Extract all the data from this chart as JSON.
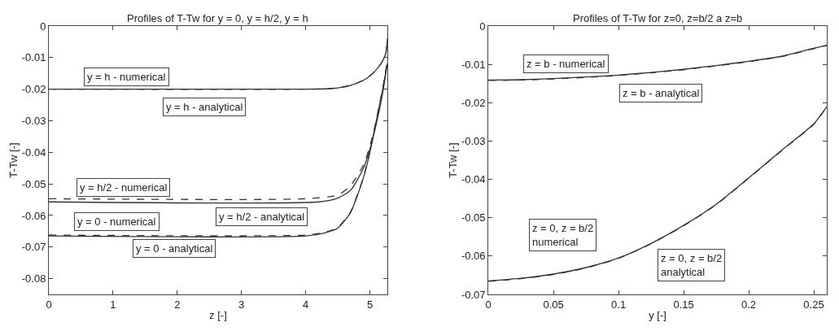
{
  "chart_data": [
    {
      "type": "line",
      "title": "Profiles of T-Tw for y = 0, y = h/2, y = h",
      "xlabel": "z [-]",
      "ylabel": "T-Tw [-]",
      "xlim": [
        0,
        5.27
      ],
      "ylim": [
        -0.085,
        0
      ],
      "xticks": [
        0,
        1,
        2,
        3,
        4,
        5
      ],
      "yticks": [
        0,
        -0.01,
        -0.02,
        -0.03,
        -0.04,
        -0.05,
        -0.06,
        -0.07,
        -0.08
      ],
      "marker": "none",
      "series": [
        {
          "color": "#333333",
          "line_style": "solid",
          "x": [
            0,
            4,
            4.3,
            4.5,
            4.7,
            4.9,
            5.0,
            5.1,
            5.2,
            5.25,
            5.27
          ],
          "values": [
            -0.02,
            -0.02,
            -0.0199,
            -0.0196,
            -0.0188,
            -0.0172,
            -0.0158,
            -0.0138,
            -0.011,
            -0.0085,
            -0.004
          ]
        },
        {
          "color": "#333333",
          "line_style": "dashed",
          "x": [
            0,
            4,
            4.3,
            4.5,
            4.7,
            4.9,
            5.0,
            5.1,
            5.2,
            5.25,
            5.27
          ],
          "values": [
            -0.02,
            -0.02,
            -0.0199,
            -0.0196,
            -0.0188,
            -0.0172,
            -0.0158,
            -0.0138,
            -0.011,
            -0.0085,
            -0.004
          ]
        },
        {
          "color": "#333333",
          "line_style": "solid",
          "x": [
            0,
            4.2,
            4.5,
            4.7,
            4.9,
            5.0,
            5.1,
            5.2,
            5.27
          ],
          "values": [
            -0.0557,
            -0.0557,
            -0.0545,
            -0.052,
            -0.045,
            -0.039,
            -0.031,
            -0.021,
            -0.012
          ]
        },
        {
          "color": "#333333",
          "line_style": "dashed",
          "x": [
            0,
            4.0,
            4.5,
            4.7,
            4.9,
            5.0,
            5.1,
            5.2,
            5.27
          ],
          "values": [
            -0.0547,
            -0.0547,
            -0.0535,
            -0.0505,
            -0.044,
            -0.038,
            -0.03,
            -0.02,
            -0.011
          ]
        },
        {
          "color": "#333333",
          "line_style": "solid",
          "x": [
            0,
            4.0,
            4.3,
            4.5,
            4.7,
            4.9,
            5.0,
            5.1,
            5.2,
            5.27
          ],
          "values": [
            -0.0665,
            -0.0665,
            -0.0655,
            -0.064,
            -0.059,
            -0.048,
            -0.04,
            -0.03,
            -0.02,
            -0.012
          ]
        },
        {
          "color": "#333333",
          "line_style": "dashed",
          "x": [
            0,
            4.0,
            4.3,
            4.5,
            4.7,
            4.9,
            5.0,
            5.1,
            5.2,
            5.27
          ],
          "values": [
            -0.0662,
            -0.0662,
            -0.0653,
            -0.0638,
            -0.0588,
            -0.0478,
            -0.0398,
            -0.0298,
            -0.0198,
            -0.0118
          ]
        }
      ],
      "annotations": [
        "y = h - numerical",
        "y = h - analytical",
        "y = h/2 - numerical",
        "y = h/2 - analytical",
        "y = 0 - numerical",
        "y = 0 - analytical"
      ]
    },
    {
      "type": "line",
      "title": "Profiles of T-Tw for z=0, z=b/2 a z=b",
      "xlabel": "y [-]",
      "ylabel": "T-Tw [-]",
      "xlim": [
        0,
        0.26
      ],
      "ylim": [
        -0.07,
        0
      ],
      "xticks": [
        0,
        0.05,
        0.1,
        0.15,
        0.2,
        0.25
      ],
      "yticks": [
        0,
        -0.01,
        -0.02,
        -0.03,
        -0.04,
        -0.05,
        -0.06,
        -0.07
      ],
      "marker": "none",
      "series": [
        {
          "color": "#333333",
          "line_style": "solid",
          "x": [
            0,
            0.025,
            0.05,
            0.075,
            0.1,
            0.125,
            0.15,
            0.175,
            0.2,
            0.225,
            0.25,
            0.26
          ],
          "values": [
            -0.0141,
            -0.014,
            -0.0137,
            -0.0133,
            -0.0128,
            -0.0121,
            -0.0113,
            -0.0103,
            -0.0092,
            -0.0079,
            -0.0058,
            -0.005
          ]
        },
        {
          "color": "#333333",
          "line_style": "dashed",
          "x": [
            0,
            0.025,
            0.05,
            0.075,
            0.1,
            0.125,
            0.15,
            0.175,
            0.2,
            0.225,
            0.25,
            0.26
          ],
          "values": [
            -0.0142,
            -0.0141,
            -0.0138,
            -0.0134,
            -0.0129,
            -0.0122,
            -0.0114,
            -0.0104,
            -0.0093,
            -0.008,
            -0.0059,
            -0.0051
          ]
        },
        {
          "color": "#333333",
          "line_style": "solid",
          "x": [
            0,
            0.025,
            0.05,
            0.075,
            0.1,
            0.125,
            0.15,
            0.175,
            0.2,
            0.225,
            0.25,
            0.26
          ],
          "values": [
            -0.0665,
            -0.0658,
            -0.0647,
            -0.063,
            -0.0605,
            -0.0567,
            -0.052,
            -0.0465,
            -0.0396,
            -0.0325,
            -0.0255,
            -0.021
          ]
        },
        {
          "color": "#333333",
          "line_style": "dashed",
          "x": [
            0,
            0.025,
            0.05,
            0.075,
            0.1,
            0.125,
            0.15,
            0.175,
            0.2,
            0.225,
            0.25,
            0.26
          ],
          "values": [
            -0.0666,
            -0.0659,
            -0.0648,
            -0.0631,
            -0.0606,
            -0.0568,
            -0.0521,
            -0.0466,
            -0.0397,
            -0.0326,
            -0.0256,
            -0.0211
          ]
        }
      ],
      "annotations": [
        "z = b - numerical",
        "z = b - analytical",
        "z = 0, z = b/2\nnumerical",
        "z = 0, z = b/2\nanalytical"
      ]
    }
  ]
}
